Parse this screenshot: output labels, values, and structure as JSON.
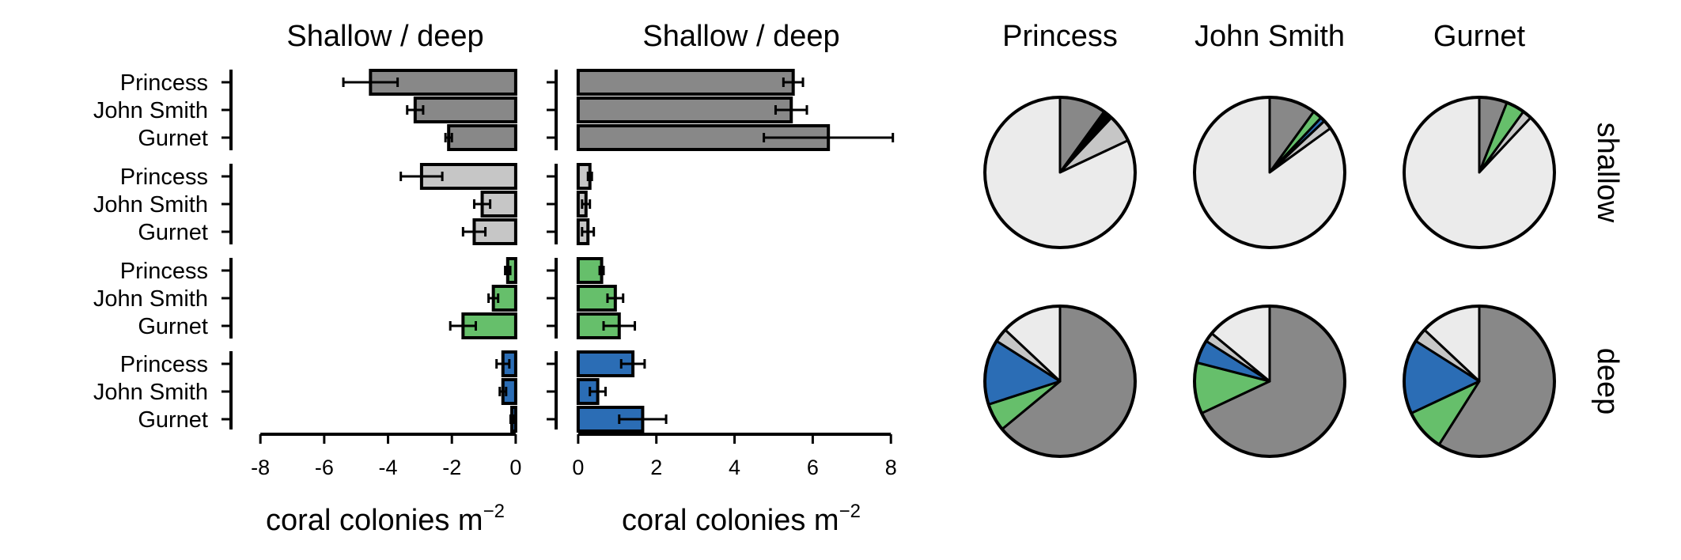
{
  "colors": {
    "dark_gray": "#888888",
    "light_gray": "#c6c6c6",
    "green": "#66bf6b",
    "blue": "#2b6db5",
    "very_light_gray": "#ebebeb",
    "black": "#000000"
  },
  "chart_data": [
    {
      "type": "bar",
      "orientation": "horizontal",
      "title": "Shallow / deep",
      "xlabel": "coral colonies m",
      "xlabel_superscript": "−2",
      "xlim": [
        -8.5,
        0.3
      ],
      "xticks": [
        -8,
        -6,
        -4,
        -2,
        0
      ],
      "xtick_labels": [
        "-8",
        "-6",
        "-4",
        "-2",
        "0"
      ],
      "categories": [
        "Princess",
        "John Smith",
        "Gurnet"
      ],
      "groups": [
        {
          "color": "#888888",
          "values": [
            -4.55,
            -3.15,
            -2.1
          ],
          "errors": [
            0.85,
            0.25,
            0.1
          ]
        },
        {
          "color": "#c6c6c6",
          "values": [
            -2.95,
            -1.05,
            -1.3
          ],
          "errors": [
            0.65,
            0.25,
            0.35
          ]
        },
        {
          "color": "#66bf6b",
          "values": [
            -0.25,
            -0.7,
            -1.65
          ],
          "errors": [
            0.08,
            0.15,
            0.4
          ]
        },
        {
          "color": "#2b6db5",
          "values": [
            -0.4,
            -0.4,
            -0.12
          ],
          "errors": [
            0.2,
            0.1,
            0.04
          ]
        }
      ]
    },
    {
      "type": "bar",
      "orientation": "horizontal",
      "title": "Shallow / deep",
      "xlabel": "coral colonies m",
      "xlabel_superscript": "−2",
      "xlim": [
        -0.2,
        8.4
      ],
      "xticks": [
        0,
        2,
        4,
        6,
        8
      ],
      "xtick_labels": [
        "0",
        "2",
        "4",
        "6",
        "8"
      ],
      "categories": [
        "Princess",
        "John Smith",
        "Gurnet"
      ],
      "groups": [
        {
          "color": "#888888",
          "values": [
            5.5,
            5.45,
            6.4
          ],
          "errors": [
            0.25,
            0.4,
            1.65
          ]
        },
        {
          "color": "#c6c6c6",
          "values": [
            0.3,
            0.2,
            0.25
          ],
          "errors": [
            0.05,
            0.1,
            0.15
          ]
        },
        {
          "color": "#66bf6b",
          "values": [
            0.6,
            0.95,
            1.05
          ],
          "errors": [
            0.05,
            0.2,
            0.4
          ]
        },
        {
          "color": "#2b6db5",
          "values": [
            1.4,
            0.5,
            1.65
          ],
          "errors": [
            0.3,
            0.2,
            0.6
          ]
        }
      ]
    },
    {
      "type": "pie",
      "columns": [
        "Princess",
        "John Smith",
        "Gurnet"
      ],
      "rows": [
        "shallow",
        "deep"
      ],
      "pies": [
        [
          [
            {
              "color": "#888888",
              "value": 0.1
            },
            {
              "color": "#000000",
              "value": 0.02
            },
            {
              "color": "#c6c6c6",
              "value": 0.06
            },
            {
              "color": "#ebebeb",
              "value": 0.82
            }
          ],
          [
            {
              "color": "#888888",
              "value": 0.1
            },
            {
              "color": "#66bf6b",
              "value": 0.02
            },
            {
              "color": "#2b6db5",
              "value": 0.01
            },
            {
              "color": "#c6c6c6",
              "value": 0.02
            },
            {
              "color": "#ebebeb",
              "value": 0.85
            }
          ],
          [
            {
              "color": "#888888",
              "value": 0.06
            },
            {
              "color": "#66bf6b",
              "value": 0.04
            },
            {
              "color": "#c6c6c6",
              "value": 0.02
            },
            {
              "color": "#ebebeb",
              "value": 0.88
            }
          ]
        ],
        [
          [
            {
              "color": "#888888",
              "value": 0.64
            },
            {
              "color": "#66bf6b",
              "value": 0.06
            },
            {
              "color": "#2b6db5",
              "value": 0.14
            },
            {
              "color": "#c6c6c6",
              "value": 0.03
            },
            {
              "color": "#ebebeb",
              "value": 0.13
            }
          ],
          [
            {
              "color": "#888888",
              "value": 0.68
            },
            {
              "color": "#66bf6b",
              "value": 0.11
            },
            {
              "color": "#2b6db5",
              "value": 0.05
            },
            {
              "color": "#c6c6c6",
              "value": 0.02
            },
            {
              "color": "#ebebeb",
              "value": 0.14
            }
          ],
          [
            {
              "color": "#888888",
              "value": 0.59
            },
            {
              "color": "#66bf6b",
              "value": 0.09
            },
            {
              "color": "#2b6db5",
              "value": 0.16
            },
            {
              "color": "#c6c6c6",
              "value": 0.03
            },
            {
              "color": "#ebebeb",
              "value": 0.13
            }
          ]
        ]
      ]
    }
  ]
}
